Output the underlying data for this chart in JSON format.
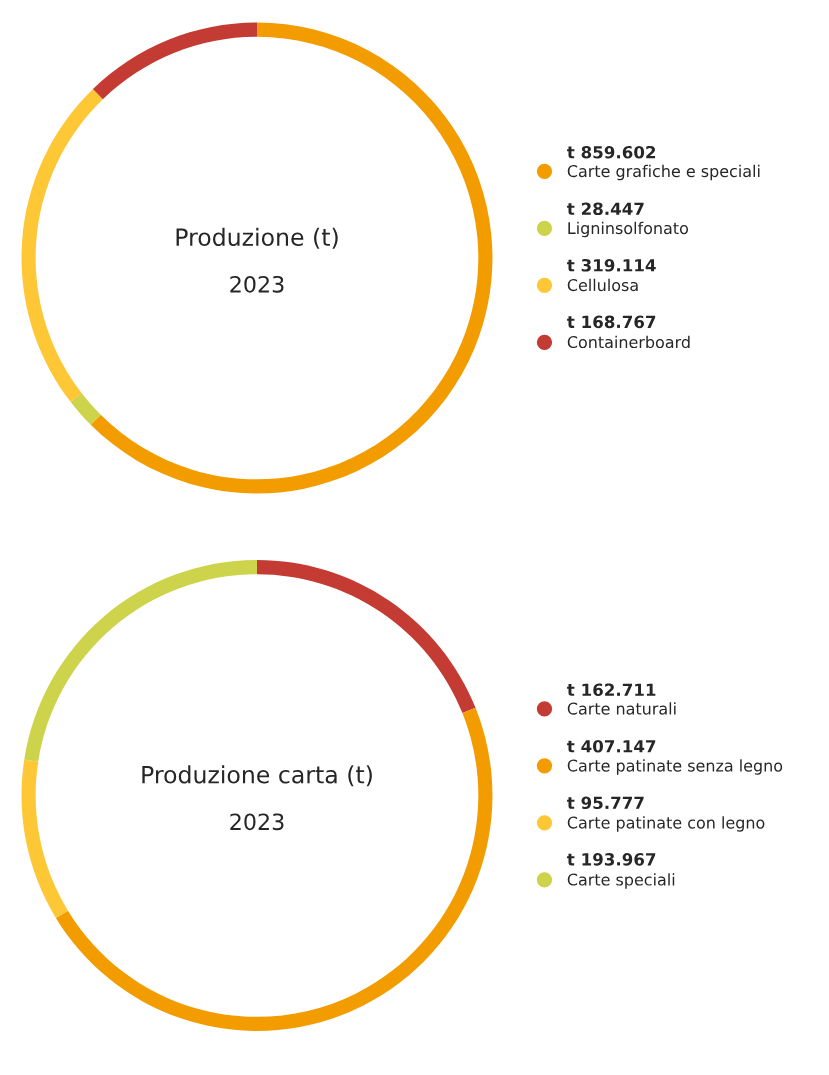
{
  "chart_data": [
    {
      "type": "donut",
      "title": "Produzione (t)",
      "subtitle": "2023",
      "categories": [
        "Carte grafiche e speciali",
        "Ligninsolfonato",
        "Cellulosa",
        "Containerboard"
      ],
      "values": [
        859602,
        28447,
        319114,
        168767
      ],
      "value_labels": [
        "t 859.602",
        "t 28.447",
        "t 319.114",
        "t 168.767"
      ],
      "colors": [
        "#f29c00",
        "#cdd34a",
        "#fec735",
        "#c33b32"
      ],
      "legend": "right"
    },
    {
      "type": "donut",
      "title": "Produzione carta (t)",
      "subtitle": "2023",
      "categories": [
        "Carte naturali",
        "Carte patinate senza legno",
        "Carte patinate con legno",
        "Carte speciali"
      ],
      "values": [
        162711,
        407147,
        95777,
        193967
      ],
      "value_labels": [
        "t 162.711",
        "t 407.147",
        "t 95.777",
        "t 193.967"
      ],
      "colors": [
        "#c33b32",
        "#f29c00",
        "#fec735",
        "#cdd34a"
      ],
      "legend": "right"
    }
  ]
}
